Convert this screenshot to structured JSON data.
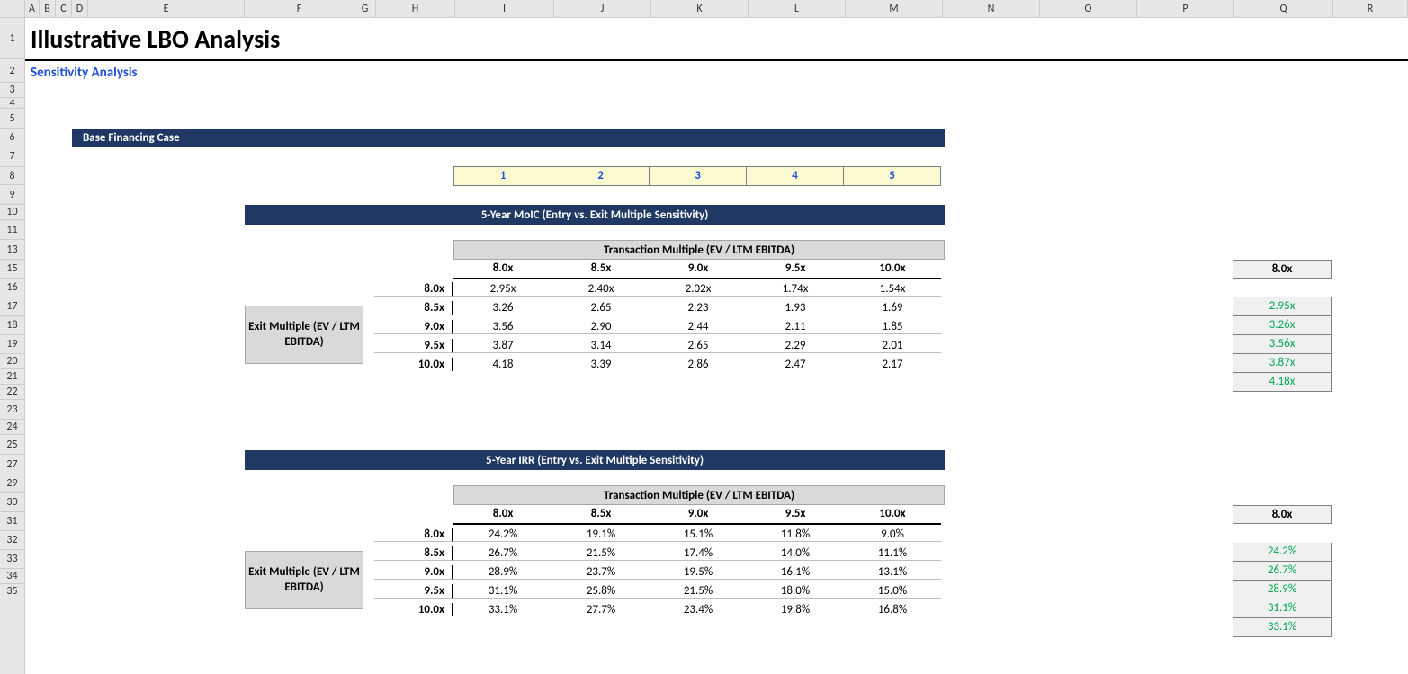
{
  "cols": [
    "A",
    "B",
    "C",
    "D",
    "E",
    "F",
    "G",
    "H",
    "I",
    "J",
    "K",
    "L",
    "M",
    "N",
    "O",
    "P",
    "Q",
    "R"
  ],
  "colWidths": {
    "A": 16,
    "B": 18,
    "C": 18,
    "D": 18,
    "E": 174,
    "F": 122,
    "G": 24,
    "H": 88,
    "I": 110,
    "J": 108,
    "K": 108,
    "L": 108,
    "M": 108,
    "N": 108,
    "O": 108,
    "P": 108,
    "Q": 110,
    "R": 83
  },
  "rows": [
    1,
    2,
    3,
    4,
    5,
    6,
    7,
    8,
    9,
    10,
    11,
    13,
    15,
    16,
    17,
    18,
    19,
    20,
    21,
    22,
    23,
    24,
    25,
    27,
    29,
    30,
    31,
    32,
    33,
    34,
    35
  ],
  "rowHeights": {
    "1": 46,
    "2": 26,
    "3": 17,
    "4": 12,
    "5": 22,
    "6": 20,
    "7": 23,
    "8": 20,
    "9": 22,
    "10": 17,
    "11": 22,
    "13": 22,
    "15": 21,
    "16": 21,
    "17": 21,
    "18": 21,
    "19": 21,
    "20": 17,
    "21": 17,
    "22": 17,
    "23": 22,
    "24": 17,
    "25": 22,
    "27": 22,
    "29": 21,
    "30": 21,
    "31": 21,
    "32": 21,
    "33": 21,
    "34": 17,
    "35": 17
  },
  "title": "Illustrative LBO Analysis",
  "subtitle": "Sensitivity Analysis",
  "section": "Base Financing Case",
  "years": [
    "1",
    "2",
    "3",
    "4",
    "5"
  ],
  "moic": {
    "header": "5-Year MoIC (Entry vs. Exit Multiple Sensitivity)",
    "colLabel": "Transaction Multiple (EV / LTM EBITDA)",
    "rowLabel": "Exit Multiple (EV / LTM EBITDA)",
    "cols": [
      "8.0x",
      "8.5x",
      "9.0x",
      "9.5x",
      "10.0x"
    ],
    "rows": [
      "8.0x",
      "8.5x",
      "9.0x",
      "9.5x",
      "10.0x"
    ],
    "data": [
      [
        "2.95x",
        "2.40x",
        "2.02x",
        "1.74x",
        "1.54x"
      ],
      [
        "3.26",
        "2.65",
        "2.23",
        "1.93",
        "1.69"
      ],
      [
        "3.56",
        "2.90",
        "2.44",
        "2.11",
        "1.85"
      ],
      [
        "3.87",
        "3.14",
        "2.65",
        "2.29",
        "2.01"
      ],
      [
        "4.18",
        "3.39",
        "2.86",
        "2.47",
        "2.17"
      ]
    ],
    "sideHead": "8.0x",
    "side": [
      "2.95x",
      "3.26x",
      "3.56x",
      "3.87x",
      "4.18x"
    ]
  },
  "irr": {
    "header": "5-Year IRR (Entry vs. Exit Multiple Sensitivity)",
    "colLabel": "Transaction Multiple (EV / LTM EBITDA)",
    "rowLabel": "Exit Multiple (EV / LTM EBITDA)",
    "cols": [
      "8.0x",
      "8.5x",
      "9.0x",
      "9.5x",
      "10.0x"
    ],
    "rows": [
      "8.0x",
      "8.5x",
      "9.0x",
      "9.5x",
      "10.0x"
    ],
    "data": [
      [
        "24.2%",
        "19.1%",
        "15.1%",
        "11.8%",
        "9.0%"
      ],
      [
        "26.7%",
        "21.5%",
        "17.4%",
        "14.0%",
        "11.1%"
      ],
      [
        "28.9%",
        "23.7%",
        "19.5%",
        "16.1%",
        "13.1%"
      ],
      [
        "31.1%",
        "25.8%",
        "21.5%",
        "18.0%",
        "15.0%"
      ],
      [
        "33.1%",
        "27.7%",
        "23.4%",
        "19.8%",
        "16.8%"
      ]
    ],
    "sideHead": "8.0x",
    "side": [
      "24.2%",
      "26.7%",
      "28.9%",
      "31.1%",
      "33.1%"
    ]
  },
  "palette": {
    "headerGrey": "#e6e6e6",
    "gridBorder": "#cccccc",
    "navy": "#1f3864",
    "blue": "#1c4fd6",
    "yellowBg": "#fbf9d0",
    "lightGrey": "#d9d9d9",
    "sideGrey": "#f0f0f0",
    "green": "#00a651"
  }
}
